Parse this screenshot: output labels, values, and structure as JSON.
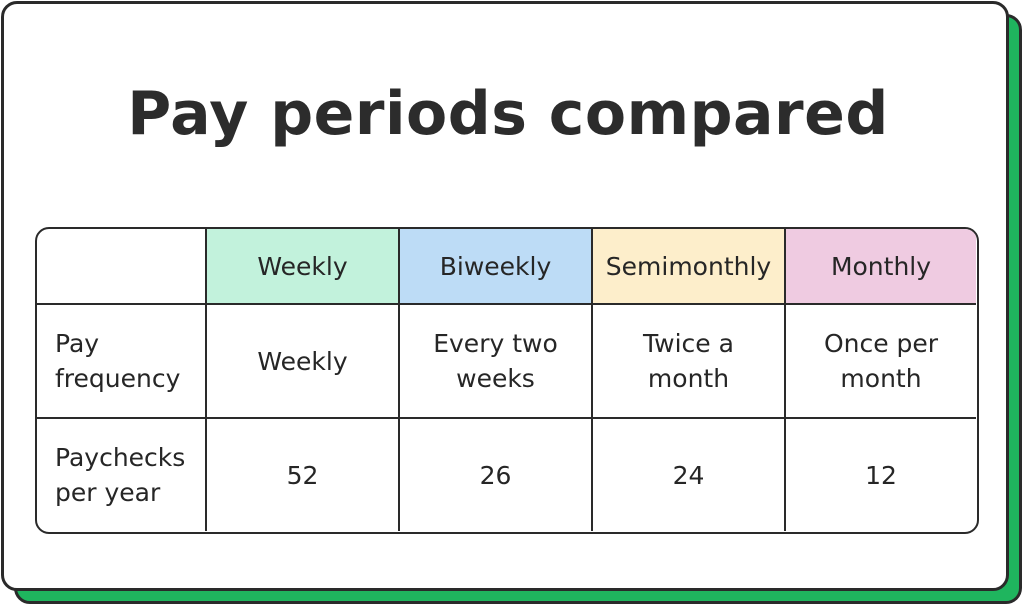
{
  "title": "Pay periods compared",
  "colors": {
    "accent_shadow": "#1fb55e",
    "weekly": "#c2f2dc",
    "biweekly": "#bddcf6",
    "semimonthly": "#fdeecb",
    "monthly": "#efcbe1",
    "border": "#2a2a2a"
  },
  "table": {
    "corner": "",
    "headers": [
      "Weekly",
      "Biweekly",
      "Semimonthly",
      "Monthly"
    ],
    "rows": [
      {
        "label": "Pay\nfrequency",
        "cells": [
          "Weekly",
          "Every two\nweeks",
          "Twice a\nmonth",
          "Once per\nmonth"
        ]
      },
      {
        "label": "Paychecks\nper year",
        "cells": [
          "52",
          "26",
          "24",
          "12"
        ]
      }
    ]
  }
}
